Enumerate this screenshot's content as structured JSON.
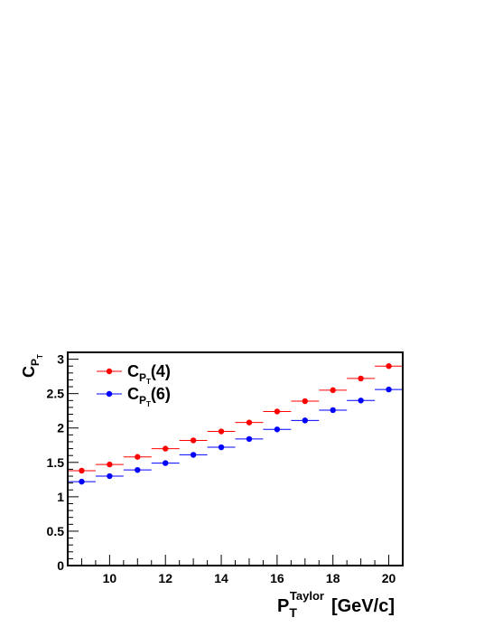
{
  "chart_data": {
    "type": "scatter",
    "title": "",
    "xlabel": {
      "main": "P",
      "sub": "T",
      "sup": "Taylor",
      "unit": "[GeV/c]"
    },
    "ylabel": {
      "main": "C",
      "sub": "P",
      "subsub": "T"
    },
    "xlim": [
      8.5,
      20.5
    ],
    "ylim": [
      0,
      3.1
    ],
    "x_ticks": [
      10,
      12,
      14,
      16,
      18,
      20
    ],
    "x_tick_labels": [
      "10",
      "12",
      "14",
      "16",
      "18",
      "20"
    ],
    "y_ticks": [
      0,
      0.5,
      1,
      1.5,
      2,
      2.5,
      3
    ],
    "y_tick_labels": [
      "0",
      "0.5",
      "1",
      "1.5",
      "2",
      "2.5",
      "3"
    ],
    "x_error_halfwidth": 0.5,
    "legend_position": "top-left",
    "grid": false,
    "series": [
      {
        "name": "C_PT(4)",
        "label_main": "C",
        "label_sub": "P",
        "label_subsub": "T",
        "label_suffix": "(4)",
        "color": "#ff0000",
        "x": [
          9,
          10,
          11,
          12,
          13,
          14,
          15,
          16,
          17,
          18,
          19,
          20
        ],
        "y": [
          1.38,
          1.47,
          1.58,
          1.7,
          1.82,
          1.95,
          2.08,
          2.24,
          2.39,
          2.55,
          2.72,
          2.9
        ]
      },
      {
        "name": "C_PT(6)",
        "label_main": "C",
        "label_sub": "P",
        "label_subsub": "T",
        "label_suffix": "(6)",
        "color": "#0000ff",
        "x": [
          9,
          10,
          11,
          12,
          13,
          14,
          15,
          16,
          17,
          18,
          19,
          20
        ],
        "y": [
          1.22,
          1.3,
          1.39,
          1.49,
          1.61,
          1.72,
          1.84,
          1.98,
          2.11,
          2.26,
          2.4,
          2.56
        ]
      }
    ]
  }
}
